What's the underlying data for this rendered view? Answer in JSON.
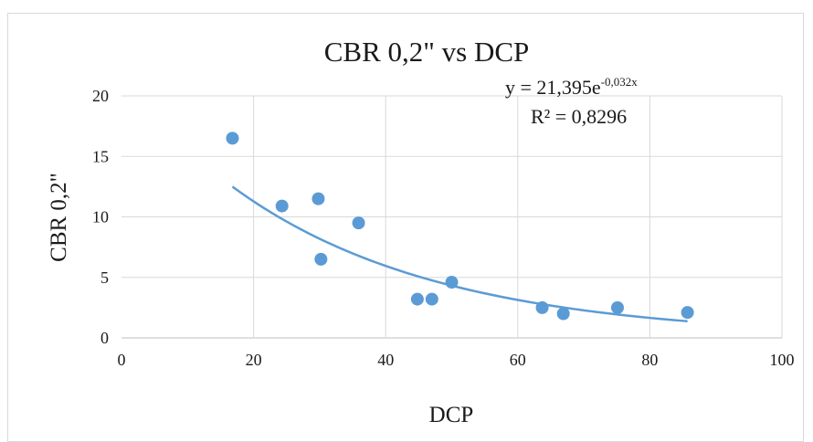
{
  "chart_data": {
    "type": "scatter",
    "title": "CBR 0,2\" vs DCP",
    "xlabel": "DCP",
    "ylabel": "CBR 0,2\"",
    "xlim": [
      0,
      100
    ],
    "ylim": [
      0,
      20
    ],
    "x_ticks": [
      "0",
      "20",
      "40",
      "60",
      "80",
      "100"
    ],
    "y_ticks": [
      "0",
      "5",
      "10",
      "15",
      "20"
    ],
    "x_tick_values": [
      0,
      20,
      40,
      60,
      80,
      100
    ],
    "y_tick_values": [
      0,
      5,
      10,
      15,
      20
    ],
    "grid": true,
    "series": [
      {
        "points": [
          {
            "x": 16.8,
            "y": 16.5
          },
          {
            "x": 24.3,
            "y": 10.9
          },
          {
            "x": 29.8,
            "y": 11.5
          },
          {
            "x": 30.2,
            "y": 6.5
          },
          {
            "x": 35.9,
            "y": 9.5
          },
          {
            "x": 44.8,
            "y": 3.2
          },
          {
            "x": 47.0,
            "y": 3.2
          },
          {
            "x": 50.0,
            "y": 4.6
          },
          {
            "x": 63.7,
            "y": 2.5
          },
          {
            "x": 66.9,
            "y": 2.0
          },
          {
            "x": 75.1,
            "y": 2.5
          },
          {
            "x": 85.7,
            "y": 2.1
          }
        ],
        "color": "#5b9bd5"
      }
    ],
    "trendline": {
      "type": "exponential",
      "a": 21.395,
      "b": -0.032,
      "x_range": [
        16.8,
        85.7
      ],
      "equation_base": "y = 21,395e",
      "equation_exponent": "-0,032x",
      "r_squared": "R² = 0,8296",
      "color": "#5b9bd5"
    }
  }
}
